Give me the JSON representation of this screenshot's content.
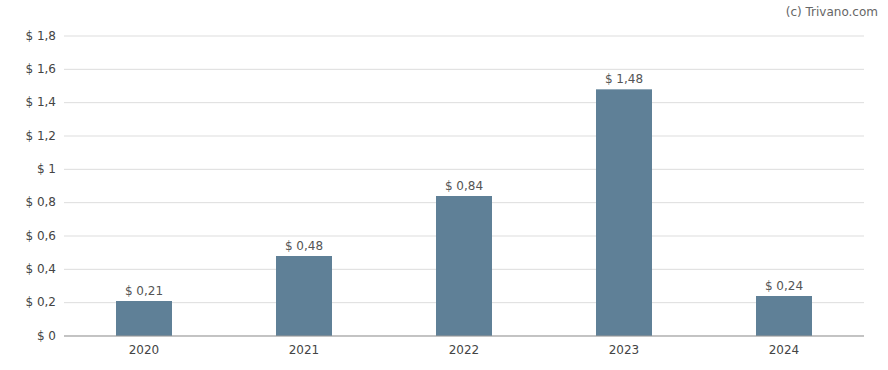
{
  "chart_data": {
    "type": "bar",
    "categories": [
      "2020",
      "2021",
      "2022",
      "2023",
      "2024"
    ],
    "values": [
      0.21,
      0.48,
      0.84,
      1.48,
      0.24
    ],
    "value_labels": [
      "$ 0,21",
      "$ 0,48",
      "$ 0,84",
      "$ 1,48",
      "$ 0,24"
    ],
    "data_labels": true,
    "color": "#5f8097",
    "ylim": [
      0,
      1.8
    ],
    "yticks": [
      {
        "value": 0,
        "label": "$ 0"
      },
      {
        "value": 0.2,
        "label": "$ 0,2"
      },
      {
        "value": 0.4,
        "label": "$ 0,4"
      },
      {
        "value": 0.6,
        "label": "$ 0,6"
      },
      {
        "value": 0.8,
        "label": "$ 0,8"
      },
      {
        "value": 1.0,
        "label": "$ 1"
      },
      {
        "value": 1.2,
        "label": "$ 1,2"
      },
      {
        "value": 1.4,
        "label": "$ 1,4"
      },
      {
        "value": 1.6,
        "label": "$ 1,6"
      },
      {
        "value": 1.8,
        "label": "$ 1,8"
      }
    ],
    "grid": true,
    "annotations": [
      "(c) Trivano.com"
    ]
  }
}
